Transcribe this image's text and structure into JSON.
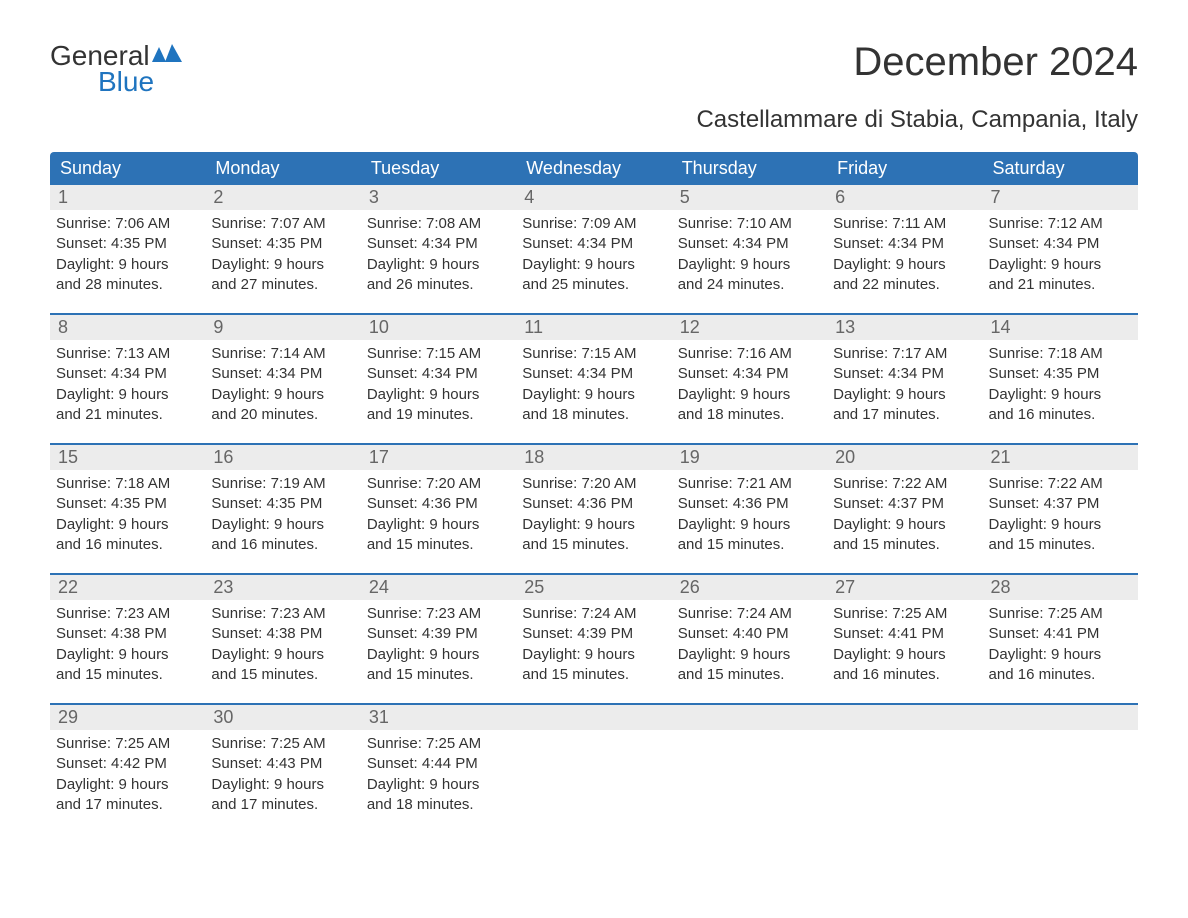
{
  "logo": {
    "text_general": "General",
    "text_blue": "Blue",
    "flag_color": "#1f74bf"
  },
  "title": "December 2024",
  "location": "Castellammare di Stabia, Campania, Italy",
  "colors": {
    "header_bg": "#2d72b5",
    "header_text": "#ffffff",
    "daynum_bg": "#ececec",
    "daynum_text": "#666666",
    "body_text": "#333333",
    "week_border": "#2d72b5",
    "background": "#ffffff"
  },
  "typography": {
    "title_fontsize": 40,
    "location_fontsize": 24,
    "dayheader_fontsize": 18,
    "daynum_fontsize": 18,
    "body_fontsize": 15
  },
  "day_headers": [
    "Sunday",
    "Monday",
    "Tuesday",
    "Wednesday",
    "Thursday",
    "Friday",
    "Saturday"
  ],
  "weeks": [
    [
      {
        "n": "1",
        "sr": "Sunrise: 7:06 AM",
        "ss": "Sunset: 4:35 PM",
        "d1": "Daylight: 9 hours",
        "d2": "and 28 minutes."
      },
      {
        "n": "2",
        "sr": "Sunrise: 7:07 AM",
        "ss": "Sunset: 4:35 PM",
        "d1": "Daylight: 9 hours",
        "d2": "and 27 minutes."
      },
      {
        "n": "3",
        "sr": "Sunrise: 7:08 AM",
        "ss": "Sunset: 4:34 PM",
        "d1": "Daylight: 9 hours",
        "d2": "and 26 minutes."
      },
      {
        "n": "4",
        "sr": "Sunrise: 7:09 AM",
        "ss": "Sunset: 4:34 PM",
        "d1": "Daylight: 9 hours",
        "d2": "and 25 minutes."
      },
      {
        "n": "5",
        "sr": "Sunrise: 7:10 AM",
        "ss": "Sunset: 4:34 PM",
        "d1": "Daylight: 9 hours",
        "d2": "and 24 minutes."
      },
      {
        "n": "6",
        "sr": "Sunrise: 7:11 AM",
        "ss": "Sunset: 4:34 PM",
        "d1": "Daylight: 9 hours",
        "d2": "and 22 minutes."
      },
      {
        "n": "7",
        "sr": "Sunrise: 7:12 AM",
        "ss": "Sunset: 4:34 PM",
        "d1": "Daylight: 9 hours",
        "d2": "and 21 minutes."
      }
    ],
    [
      {
        "n": "8",
        "sr": "Sunrise: 7:13 AM",
        "ss": "Sunset: 4:34 PM",
        "d1": "Daylight: 9 hours",
        "d2": "and 21 minutes."
      },
      {
        "n": "9",
        "sr": "Sunrise: 7:14 AM",
        "ss": "Sunset: 4:34 PM",
        "d1": "Daylight: 9 hours",
        "d2": "and 20 minutes."
      },
      {
        "n": "10",
        "sr": "Sunrise: 7:15 AM",
        "ss": "Sunset: 4:34 PM",
        "d1": "Daylight: 9 hours",
        "d2": "and 19 minutes."
      },
      {
        "n": "11",
        "sr": "Sunrise: 7:15 AM",
        "ss": "Sunset: 4:34 PM",
        "d1": "Daylight: 9 hours",
        "d2": "and 18 minutes."
      },
      {
        "n": "12",
        "sr": "Sunrise: 7:16 AM",
        "ss": "Sunset: 4:34 PM",
        "d1": "Daylight: 9 hours",
        "d2": "and 18 minutes."
      },
      {
        "n": "13",
        "sr": "Sunrise: 7:17 AM",
        "ss": "Sunset: 4:34 PM",
        "d1": "Daylight: 9 hours",
        "d2": "and 17 minutes."
      },
      {
        "n": "14",
        "sr": "Sunrise: 7:18 AM",
        "ss": "Sunset: 4:35 PM",
        "d1": "Daylight: 9 hours",
        "d2": "and 16 minutes."
      }
    ],
    [
      {
        "n": "15",
        "sr": "Sunrise: 7:18 AM",
        "ss": "Sunset: 4:35 PM",
        "d1": "Daylight: 9 hours",
        "d2": "and 16 minutes."
      },
      {
        "n": "16",
        "sr": "Sunrise: 7:19 AM",
        "ss": "Sunset: 4:35 PM",
        "d1": "Daylight: 9 hours",
        "d2": "and 16 minutes."
      },
      {
        "n": "17",
        "sr": "Sunrise: 7:20 AM",
        "ss": "Sunset: 4:36 PM",
        "d1": "Daylight: 9 hours",
        "d2": "and 15 minutes."
      },
      {
        "n": "18",
        "sr": "Sunrise: 7:20 AM",
        "ss": "Sunset: 4:36 PM",
        "d1": "Daylight: 9 hours",
        "d2": "and 15 minutes."
      },
      {
        "n": "19",
        "sr": "Sunrise: 7:21 AM",
        "ss": "Sunset: 4:36 PM",
        "d1": "Daylight: 9 hours",
        "d2": "and 15 minutes."
      },
      {
        "n": "20",
        "sr": "Sunrise: 7:22 AM",
        "ss": "Sunset: 4:37 PM",
        "d1": "Daylight: 9 hours",
        "d2": "and 15 minutes."
      },
      {
        "n": "21",
        "sr": "Sunrise: 7:22 AM",
        "ss": "Sunset: 4:37 PM",
        "d1": "Daylight: 9 hours",
        "d2": "and 15 minutes."
      }
    ],
    [
      {
        "n": "22",
        "sr": "Sunrise: 7:23 AM",
        "ss": "Sunset: 4:38 PM",
        "d1": "Daylight: 9 hours",
        "d2": "and 15 minutes."
      },
      {
        "n": "23",
        "sr": "Sunrise: 7:23 AM",
        "ss": "Sunset: 4:38 PM",
        "d1": "Daylight: 9 hours",
        "d2": "and 15 minutes."
      },
      {
        "n": "24",
        "sr": "Sunrise: 7:23 AM",
        "ss": "Sunset: 4:39 PM",
        "d1": "Daylight: 9 hours",
        "d2": "and 15 minutes."
      },
      {
        "n": "25",
        "sr": "Sunrise: 7:24 AM",
        "ss": "Sunset: 4:39 PM",
        "d1": "Daylight: 9 hours",
        "d2": "and 15 minutes."
      },
      {
        "n": "26",
        "sr": "Sunrise: 7:24 AM",
        "ss": "Sunset: 4:40 PM",
        "d1": "Daylight: 9 hours",
        "d2": "and 15 minutes."
      },
      {
        "n": "27",
        "sr": "Sunrise: 7:25 AM",
        "ss": "Sunset: 4:41 PM",
        "d1": "Daylight: 9 hours",
        "d2": "and 16 minutes."
      },
      {
        "n": "28",
        "sr": "Sunrise: 7:25 AM",
        "ss": "Sunset: 4:41 PM",
        "d1": "Daylight: 9 hours",
        "d2": "and 16 minutes."
      }
    ],
    [
      {
        "n": "29",
        "sr": "Sunrise: 7:25 AM",
        "ss": "Sunset: 4:42 PM",
        "d1": "Daylight: 9 hours",
        "d2": "and 17 minutes."
      },
      {
        "n": "30",
        "sr": "Sunrise: 7:25 AM",
        "ss": "Sunset: 4:43 PM",
        "d1": "Daylight: 9 hours",
        "d2": "and 17 minutes."
      },
      {
        "n": "31",
        "sr": "Sunrise: 7:25 AM",
        "ss": "Sunset: 4:44 PM",
        "d1": "Daylight: 9 hours",
        "d2": "and 18 minutes."
      },
      {
        "empty": true
      },
      {
        "empty": true
      },
      {
        "empty": true
      },
      {
        "empty": true
      }
    ]
  ]
}
